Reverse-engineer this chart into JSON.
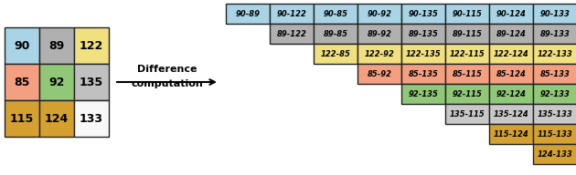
{
  "grid_values": [
    [
      90,
      89,
      122
    ],
    [
      85,
      92,
      135
    ],
    [
      115,
      124,
      133
    ]
  ],
  "grid_colors": [
    [
      "#a8d4e6",
      "#b0b0b0",
      "#f0e080"
    ],
    [
      "#f4a080",
      "#90c878",
      "#c0c0c0"
    ],
    [
      "#d4a030",
      "#d4a030",
      "#f8f8f8"
    ]
  ],
  "diff_labels": [
    [
      "90-89",
      "90-122",
      "90-85",
      "90-92",
      "90-135",
      "90-115",
      "90-124",
      "90-133"
    ],
    [
      "89-122",
      "89-85",
      "89-92",
      "89-135",
      "89-115",
      "89-124",
      "89-133"
    ],
    [
      "122-85",
      "122-92",
      "122-135",
      "122-115",
      "122-124",
      "122-133"
    ],
    [
      "85-92",
      "85-135",
      "85-115",
      "85-124",
      "85-133"
    ],
    [
      "92-135",
      "92-115",
      "92-124",
      "92-133"
    ],
    [
      "135-115",
      "135-124",
      "135-133"
    ],
    [
      "115-124",
      "115-133"
    ],
    [
      "124-133"
    ]
  ],
  "diff_row_colors": [
    "#a8d4e6",
    "#b0b0b0",
    "#f0e080",
    "#f4a080",
    "#90c878",
    "#c8c8c8",
    "#d4a030",
    "#d4a030"
  ],
  "arrow_text": "Difference\ncomputation",
  "bg_color": "#ffffff"
}
